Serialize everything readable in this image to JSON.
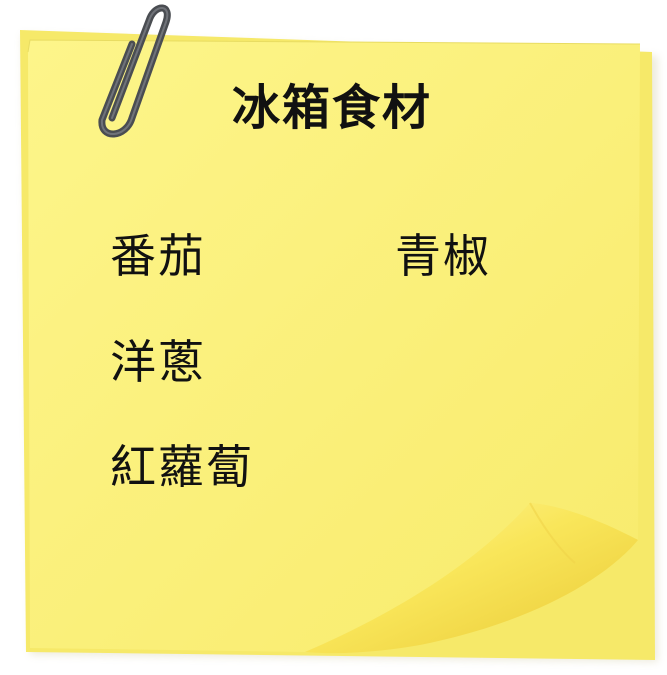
{
  "note": {
    "title": "冰箱食材",
    "items": [
      "番茄",
      "青椒",
      "洋蔥",
      "紅蘿蔔"
    ],
    "paper_color": "#fbf07a",
    "paper_back_color": "#f7e86a",
    "curl_color": "#f7e04a",
    "clip_color": "#4a4d52"
  }
}
